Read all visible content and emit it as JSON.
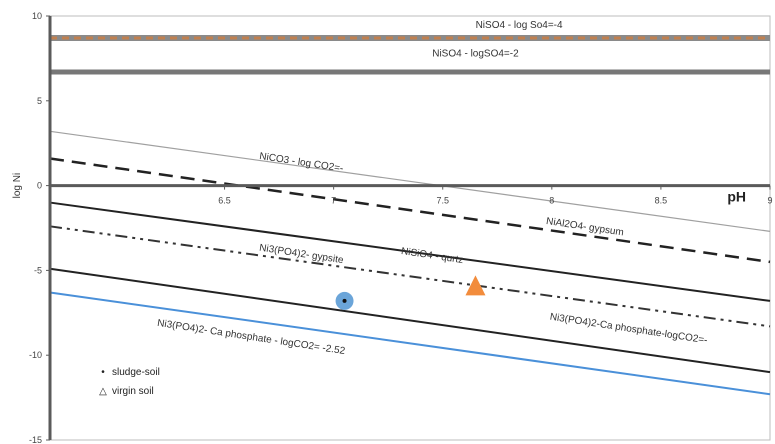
{
  "chart_data": {
    "type": "line",
    "xlabel": "pH",
    "ylabel": "log Ni",
    "xlim": [
      5.7,
      9
    ],
    "ylim": [
      -15,
      10
    ],
    "x_ticks": [
      6.5,
      7,
      7.5,
      8,
      8.5,
      9
    ],
    "x_tick_labels": [
      "6.5",
      "7",
      "7.5",
      "8",
      "8.5",
      "9"
    ],
    "y_ticks": [
      10,
      5,
      0,
      -5,
      -10,
      -15
    ],
    "y_tick_labels": [
      "10",
      "5",
      "0",
      "-5",
      "-10",
      "-15"
    ],
    "series": [
      {
        "name": "NiSO4 - log SO4=-4",
        "x": [
          5.7,
          9
        ],
        "y": [
          8.7,
          8.7
        ],
        "color": "#c08050",
        "style": "dashed-double"
      },
      {
        "name": "NiSO4 - logSO4=-2",
        "x": [
          5.7,
          9
        ],
        "y": [
          6.7,
          6.7
        ],
        "color": "#777777",
        "style": "solid-thick"
      },
      {
        "name": "NiCO3 - log CO2=-",
        "x": [
          5.7,
          9
        ],
        "y": [
          3.2,
          -2.7
        ],
        "color": "#a0a0a0",
        "style": "solid-thin"
      },
      {
        "name": "NiAl2O4 - gypsum",
        "x": [
          5.7,
          9
        ],
        "y": [
          1.6,
          -4.5
        ],
        "color": "#222222",
        "style": "dashed"
      },
      {
        "name": "Ni3(PO4)2 - gypsite",
        "x": [
          5.7,
          9
        ],
        "y": [
          -1.0,
          -6.8
        ],
        "color": "#222222",
        "style": "solid"
      },
      {
        "name": "NiSiO4 - qurtz",
        "x": [
          5.7,
          9
        ],
        "y": [
          -2.4,
          -8.3
        ],
        "color": "#333333",
        "style": "dash-dot-dot"
      },
      {
        "name": "Ni3(PO4)2-Ca phosphate - logCO2=-",
        "x": [
          5.7,
          9
        ],
        "y": [
          -4.9,
          -11.0
        ],
        "color": "#222222",
        "style": "solid"
      },
      {
        "name": "Ni3(PO4)2- Ca phosphate - logCO2= -2.52",
        "x": [
          5.7,
          9
        ],
        "y": [
          -6.3,
          -12.3
        ],
        "color": "#4a90d9",
        "style": "solid"
      }
    ],
    "points": [
      {
        "name": "sludge-soil",
        "x": 7.05,
        "y": -6.8,
        "color": "#5b9bd5",
        "marker": "circle"
      },
      {
        "name": "virgin soil",
        "x": 7.65,
        "y": -6.0,
        "color": "#f28c3c",
        "marker": "triangle"
      }
    ],
    "annotations": [
      {
        "text": "NiSO4 - log So4=-4",
        "x": 7.85,
        "y": 9.3
      },
      {
        "text": "NiSO4 - logSO4=-2",
        "x": 7.65,
        "y": 7.6
      },
      {
        "text": "NiCO3 - log CO2=-",
        "x": 6.85,
        "y": 1.2
      },
      {
        "text": "NiAl2O4- gypsum",
        "x": 8.15,
        "y": -2.6
      },
      {
        "text": "Ni3(PO4)2- gypsite",
        "x": 6.85,
        "y": -4.2
      },
      {
        "text": "NiSiO4 - qurtz",
        "x": 7.45,
        "y": -4.3
      },
      {
        "text": "Ni3(PO4)2-Ca phosphate-logCO2=-",
        "x": 8.35,
        "y": -8.6
      },
      {
        "text": "Ni3(PO4)2- Ca phosphate - logCO2= -2.52",
        "x": 6.62,
        "y": -9.1
      }
    ],
    "legend": [
      {
        "label": "sludge-soil",
        "symbol": "•"
      },
      {
        "label": "virgin soil",
        "symbol": "△"
      }
    ],
    "legend_position": "bottom-left",
    "grid": false
  }
}
